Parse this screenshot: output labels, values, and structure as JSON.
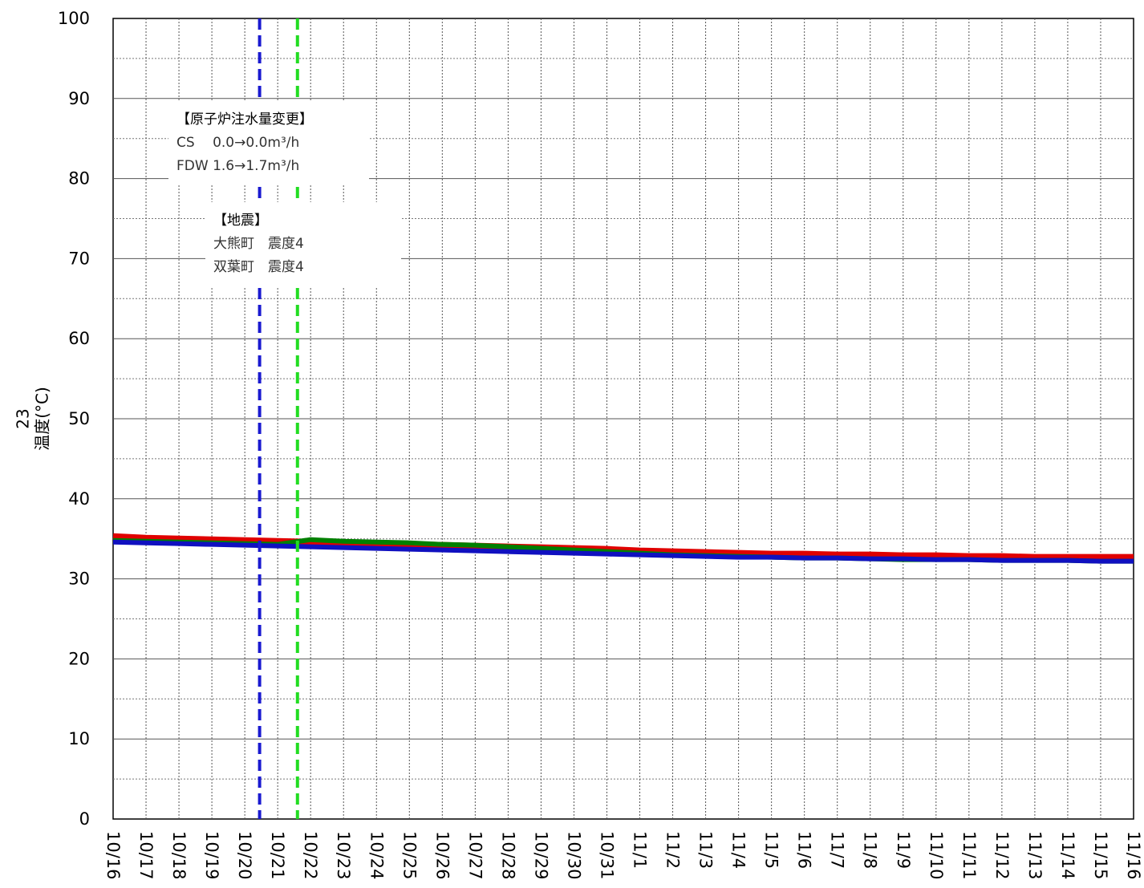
{
  "chart_data": {
    "type": "line",
    "title": "",
    "ylabel_number": "23",
    "ylabel": "温度(°C)",
    "xlabel": "",
    "ylim": [
      0,
      100
    ],
    "y_ticks": [
      "0",
      "10",
      "20",
      "30",
      "40",
      "50",
      "60",
      "70",
      "80",
      "90",
      "100"
    ],
    "categories": [
      "10/16",
      "10/17",
      "10/18",
      "10/19",
      "10/20",
      "10/21",
      "10/22",
      "10/23",
      "10/24",
      "10/25",
      "10/26",
      "10/27",
      "10/28",
      "10/29",
      "10/30",
      "10/31",
      "11/1",
      "11/2",
      "11/3",
      "11/4",
      "11/5",
      "11/6",
      "11/7",
      "11/8",
      "11/9",
      "11/10",
      "11/11",
      "11/12",
      "11/13",
      "11/14",
      "11/15",
      "11/16"
    ],
    "grid": true,
    "series": [
      {
        "color": "#e00000",
        "values": [
          35.3,
          35.1,
          35.0,
          34.9,
          34.8,
          34.7,
          34.6,
          34.5,
          34.4,
          34.3,
          34.2,
          34.1,
          34.0,
          33.9,
          33.8,
          33.7,
          33.5,
          33.4,
          33.3,
          33.2,
          33.1,
          33.1,
          33.0,
          33.0,
          32.9,
          32.9,
          32.8,
          32.8,
          32.7,
          32.7,
          32.7,
          32.7
        ]
      },
      {
        "color": "#008000",
        "values": [
          34.8,
          34.7,
          34.6,
          34.5,
          34.4,
          34.3,
          34.9,
          34.7,
          34.6,
          34.5,
          34.3,
          34.2,
          34.0,
          33.8,
          33.6,
          33.4,
          33.2,
          33.0,
          32.9,
          32.8,
          32.7,
          32.6,
          32.6,
          32.5,
          32.4,
          32.4,
          32.4,
          32.3,
          32.3,
          32.3,
          32.2,
          32.2
        ]
      },
      {
        "color": "#1010c0",
        "values": [
          34.6,
          34.5,
          34.4,
          34.3,
          34.2,
          34.1,
          34.0,
          33.9,
          33.8,
          33.7,
          33.6,
          33.5,
          33.4,
          33.3,
          33.2,
          33.1,
          33.0,
          32.9,
          32.8,
          32.7,
          32.7,
          32.6,
          32.6,
          32.5,
          32.5,
          32.4,
          32.4,
          32.3,
          32.3,
          32.3,
          32.2,
          32.2
        ]
      }
    ],
    "event_lines": [
      {
        "x": 4.45,
        "color": "#1a1ad0"
      },
      {
        "x": 5.6,
        "color": "#22dd22"
      }
    ],
    "annotations": [
      {
        "lines": [
          "【原子炉注水量変更】",
          "CS　 0.0→0.0m³/h",
          "FDW  1.6→1.7m³/h"
        ]
      },
      {
        "lines": [
          "【地震】",
          "大熊町　震度4",
          "双葉町　震度4"
        ]
      }
    ]
  }
}
